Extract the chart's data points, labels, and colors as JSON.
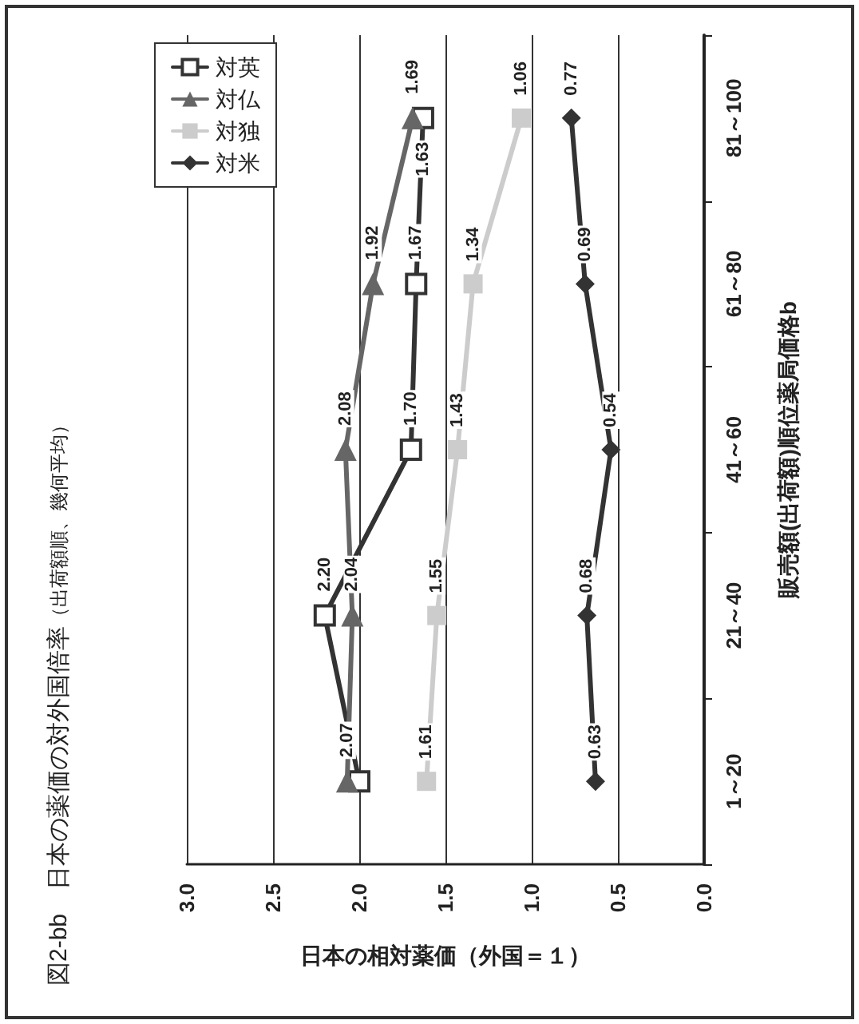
{
  "chart_data": {
    "type": "line",
    "orientation": "horizontal",
    "title": "図2-bb　日本の薬価の対外国倍率",
    "subtitle": "（出荷額順、幾何平均）",
    "ylabel": "販売額(出荷額)順位薬局価格b",
    "xlabel": "日本の相対薬価（外国＝１）",
    "categories": [
      "81～100",
      "61～80",
      "41～60",
      "21～40",
      "1～20"
    ],
    "series": [
      {
        "name": "対英",
        "color": "#333333",
        "marker": "square",
        "values": [
          1.63,
          1.67,
          1.7,
          2.2,
          2.0
        ],
        "value_labels": [
          "1.63",
          "1.67",
          "1.70",
          "2.20",
          null
        ]
      },
      {
        "name": "対仏",
        "color": "#666666",
        "marker": "triangle",
        "values": [
          1.69,
          1.92,
          2.08,
          2.04,
          2.07
        ],
        "value_labels": [
          "1.69",
          "1.92",
          "2.08",
          "2.04",
          "2.07"
        ]
      },
      {
        "name": "対独",
        "color": "#cccccc",
        "marker": "square",
        "values": [
          1.06,
          1.34,
          1.43,
          1.55,
          1.61
        ],
        "value_labels": [
          "1.06",
          "1.34",
          "1.43",
          "1.55",
          "1.61"
        ]
      },
      {
        "name": "対米",
        "color": "#333333",
        "marker": "diamond",
        "values": [
          0.77,
          0.69,
          0.54,
          0.68,
          0.63
        ],
        "value_labels": [
          "0.77",
          "0.69",
          "0.54",
          "0.68",
          "0.63"
        ]
      }
    ],
    "xlim": [
      3,
      0
    ],
    "xticks": [
      {
        "value": 3,
        "label": "3.0"
      },
      2.5,
      {
        "value": 2,
        "label": "2.0"
      },
      1.5,
      {
        "value": 1,
        "label": "1.0"
      },
      0.5,
      {
        "value": 0,
        "label": "0.0"
      }
    ],
    "grid": "x",
    "legend": "top left",
    "line_style": "solid"
  }
}
